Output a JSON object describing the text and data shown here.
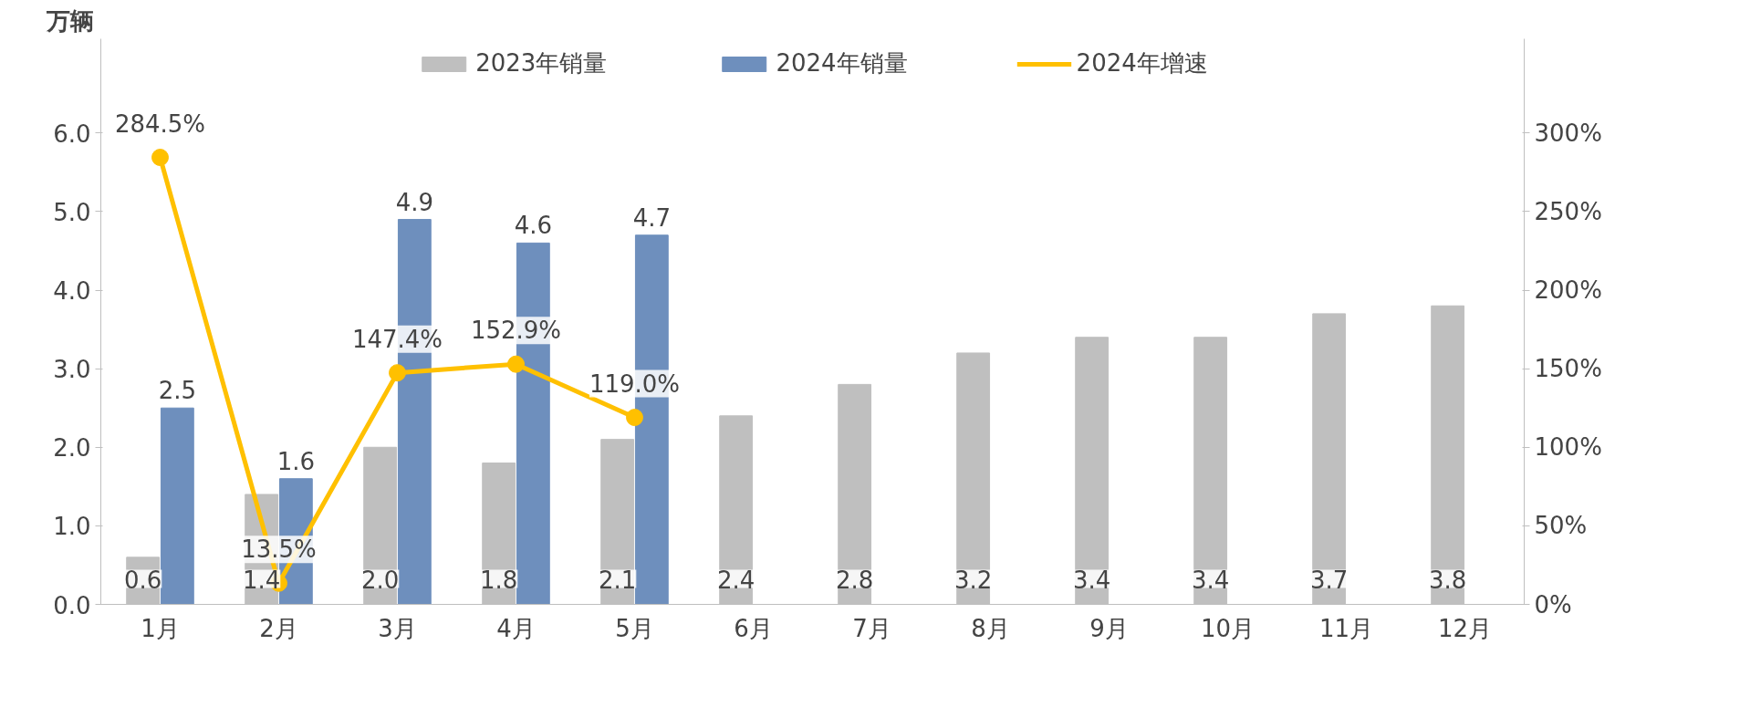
{
  "chart_data": {
    "type": "bar",
    "ylabel": "万辆",
    "categories": [
      "1月",
      "2月",
      "3月",
      "4月",
      "5月",
      "6月",
      "7月",
      "8月",
      "9月",
      "10月",
      "11月",
      "12月"
    ],
    "series": [
      {
        "name": "2023年销量",
        "color": "#bfbfbf",
        "values": [
          0.6,
          1.4,
          2.0,
          1.8,
          2.1,
          2.4,
          2.8,
          3.2,
          3.4,
          3.4,
          3.7,
          3.8
        ],
        "value_labels": [
          "0.6",
          "1.4",
          "2.0",
          "1.8",
          "2.1",
          "2.4",
          "2.8",
          "3.2",
          "3.4",
          "3.4",
          "3.7",
          "3.8"
        ]
      },
      {
        "name": "2024年销量",
        "color": "#6e8fbd",
        "values": [
          2.5,
          1.6,
          4.9,
          4.6,
          4.7,
          null,
          null,
          null,
          null,
          null,
          null,
          null
        ],
        "value_labels": [
          "2.5",
          "1.6",
          "4.9",
          "4.6",
          "4.7",
          null,
          null,
          null,
          null,
          null,
          null,
          null
        ]
      },
      {
        "name": "2024年增速",
        "type": "line",
        "axis": "y2",
        "color": "#ffc000",
        "marker": "circle",
        "values": [
          284.5,
          13.5,
          147.4,
          152.9,
          119.0,
          null,
          null,
          null,
          null,
          null,
          null,
          null
        ],
        "value_labels": [
          "284.5%",
          "13.5%",
          "147.4%",
          "152.9%",
          "119.0%",
          null,
          null,
          null,
          null,
          null,
          null,
          null
        ]
      }
    ],
    "ylim": [
      0,
      7.2
    ],
    "yticks": [
      {
        "value": 0,
        "label": "0.0"
      },
      {
        "value": 1,
        "label": "1.0"
      },
      {
        "value": 2,
        "label": "2.0"
      },
      {
        "value": 3,
        "label": "3.0"
      },
      {
        "value": 4,
        "label": "4.0"
      },
      {
        "value": 5,
        "label": "5.0"
      },
      {
        "value": 6,
        "label": "6.0"
      }
    ],
    "y2lim": [
      0,
      360
    ],
    "y2ticks": [
      {
        "value": 0,
        "label": "0%"
      },
      {
        "value": 50,
        "label": "50%"
      },
      {
        "value": 100,
        "label": "100%"
      },
      {
        "value": 150,
        "label": "150%"
      },
      {
        "value": 200,
        "label": "200%"
      },
      {
        "value": 250,
        "label": "250%"
      },
      {
        "value": 300,
        "label": "300%"
      }
    ],
    "legend": "top",
    "grid": false
  }
}
